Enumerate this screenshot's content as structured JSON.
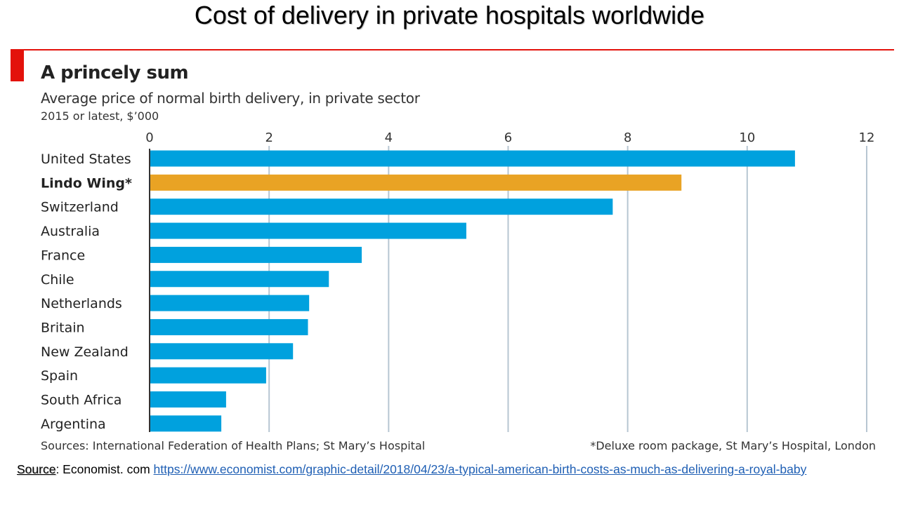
{
  "slide": {
    "title": "Cost of delivery in private hospitals worldwide"
  },
  "chart_data": {
    "type": "bar",
    "orientation": "horizontal",
    "title": "A princely sum",
    "subtitle": "Average price of normal birth delivery, in private sector",
    "unit_note": "2015 or latest, $’000",
    "xlabel": "",
    "ylabel": "",
    "xlim": [
      0,
      12
    ],
    "xticks": [
      0,
      2,
      4,
      6,
      8,
      10,
      12
    ],
    "grid": true,
    "categories": [
      "United States",
      "Lindo Wing*",
      "Switzerland",
      "Australia",
      "France",
      "Chile",
      "Netherlands",
      "Britain",
      "New Zealand",
      "Spain",
      "South Africa",
      "Argentina"
    ],
    "values": [
      10.8,
      8.9,
      7.75,
      5.3,
      3.55,
      3.0,
      2.67,
      2.65,
      2.4,
      1.95,
      1.28,
      1.2
    ],
    "highlight": {
      "category": "Lindo Wing*",
      "color": "#e9a324"
    },
    "bar_color": "#00a1de",
    "accent_color": "#e3120b",
    "sources": "Sources: International Federation of Health Plans; St Mary’s Hospital",
    "footnote": "*Deluxe room package, St Mary’s Hospital, London"
  },
  "citation": {
    "label": "Source",
    "text": ": Economist. com ",
    "link": "https://www.economist.com/graphic-detail/2018/04/23/a-typical-american-birth-costs-as-much-as-delivering-a-royal-baby"
  }
}
